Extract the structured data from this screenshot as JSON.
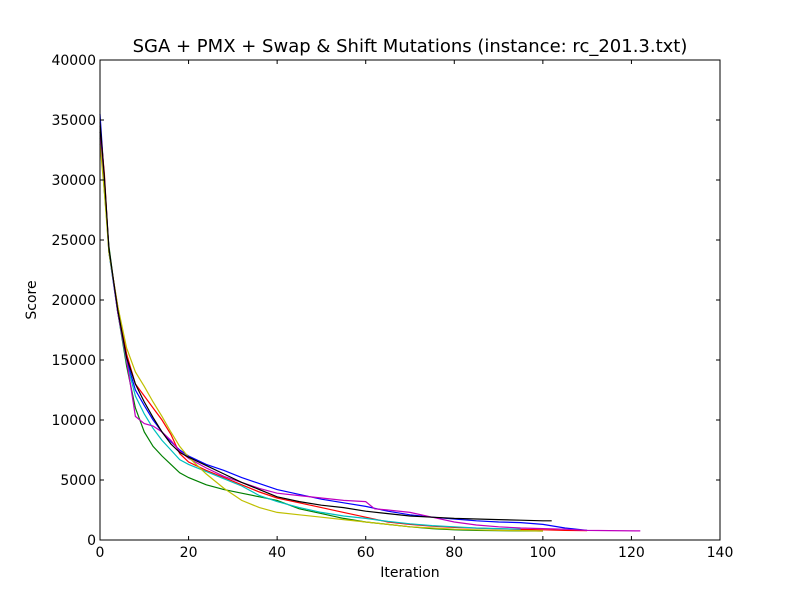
{
  "chart_data": {
    "type": "line",
    "title": "SGA + PMX + Swap & Shift Mutations (instance: rc_201.3.txt)",
    "xlabel": "Iteration",
    "ylabel": "Score",
    "xlim": [
      0,
      140
    ],
    "ylim": [
      0,
      40000
    ],
    "xticks": [
      0,
      20,
      40,
      60,
      80,
      100,
      120,
      140
    ],
    "yticks": [
      0,
      5000,
      10000,
      15000,
      20000,
      25000,
      30000,
      35000,
      40000
    ],
    "grid": false,
    "legend": "none",
    "series": [
      {
        "color": "#0000ff",
        "points": [
          [
            0,
            35500
          ],
          [
            1,
            30000
          ],
          [
            2,
            24000
          ],
          [
            4,
            19000
          ],
          [
            6,
            15000
          ],
          [
            8,
            12500
          ],
          [
            10,
            11200
          ],
          [
            12,
            10000
          ],
          [
            14,
            9000
          ],
          [
            16,
            8200
          ],
          [
            18,
            7500
          ],
          [
            20,
            7000
          ],
          [
            24,
            6300
          ],
          [
            28,
            5800
          ],
          [
            32,
            5200
          ],
          [
            36,
            4700
          ],
          [
            40,
            4200
          ],
          [
            45,
            3800
          ],
          [
            50,
            3400
          ],
          [
            55,
            3100
          ],
          [
            60,
            2800
          ],
          [
            65,
            2400
          ],
          [
            70,
            2100
          ],
          [
            75,
            1900
          ],
          [
            80,
            1750
          ],
          [
            85,
            1600
          ],
          [
            90,
            1500
          ],
          [
            95,
            1450
          ],
          [
            100,
            1300
          ],
          [
            105,
            1000
          ],
          [
            110,
            800
          ]
        ]
      },
      {
        "color": "#008000",
        "points": [
          [
            0,
            34000
          ],
          [
            1,
            29000
          ],
          [
            2,
            24500
          ],
          [
            4,
            19000
          ],
          [
            6,
            14500
          ],
          [
            8,
            11000
          ],
          [
            10,
            9000
          ],
          [
            12,
            7800
          ],
          [
            14,
            7000
          ],
          [
            16,
            6300
          ],
          [
            18,
            5600
          ],
          [
            20,
            5200
          ],
          [
            24,
            4600
          ],
          [
            28,
            4200
          ],
          [
            32,
            3900
          ],
          [
            36,
            3600
          ],
          [
            40,
            3300
          ],
          [
            45,
            2600
          ],
          [
            50,
            2200
          ],
          [
            55,
            1800
          ],
          [
            60,
            1500
          ],
          [
            65,
            1300
          ],
          [
            70,
            1100
          ],
          [
            75,
            950
          ],
          [
            80,
            850
          ],
          [
            85,
            800
          ],
          [
            90,
            780
          ],
          [
            95,
            760
          ],
          [
            100,
            750
          ]
        ]
      },
      {
        "color": "#ff0000",
        "points": [
          [
            0,
            34500
          ],
          [
            1,
            30500
          ],
          [
            2,
            24000
          ],
          [
            4,
            19500
          ],
          [
            6,
            15500
          ],
          [
            8,
            13000
          ],
          [
            10,
            12000
          ],
          [
            12,
            11000
          ],
          [
            14,
            10000
          ],
          [
            16,
            8800
          ],
          [
            18,
            7200
          ],
          [
            20,
            6500
          ],
          [
            24,
            5800
          ],
          [
            28,
            5200
          ],
          [
            32,
            4600
          ],
          [
            36,
            4000
          ],
          [
            40,
            3500
          ],
          [
            45,
            3100
          ],
          [
            50,
            2700
          ],
          [
            55,
            2300
          ],
          [
            60,
            1900
          ],
          [
            65,
            1500
          ],
          [
            70,
            1300
          ],
          [
            75,
            1150
          ],
          [
            80,
            1050
          ],
          [
            85,
            980
          ],
          [
            90,
            930
          ],
          [
            95,
            880
          ],
          [
            100,
            850
          ],
          [
            105,
            800
          ],
          [
            110,
            780
          ]
        ]
      },
      {
        "color": "#00bfbf",
        "points": [
          [
            0,
            33500
          ],
          [
            1,
            29500
          ],
          [
            2,
            24000
          ],
          [
            4,
            19000
          ],
          [
            6,
            14800
          ],
          [
            8,
            12000
          ],
          [
            10,
            10500
          ],
          [
            12,
            9300
          ],
          [
            14,
            8300
          ],
          [
            16,
            7500
          ],
          [
            18,
            6700
          ],
          [
            20,
            6300
          ],
          [
            24,
            5700
          ],
          [
            28,
            5100
          ],
          [
            32,
            4500
          ],
          [
            36,
            3700
          ],
          [
            40,
            3200
          ],
          [
            45,
            2700
          ],
          [
            50,
            2300
          ],
          [
            55,
            2000
          ],
          [
            60,
            1800
          ],
          [
            65,
            1550
          ],
          [
            70,
            1350
          ],
          [
            75,
            1200
          ],
          [
            80,
            1100
          ],
          [
            85,
            1000
          ],
          [
            90,
            950
          ],
          [
            95,
            900
          ]
        ]
      },
      {
        "color": "#bf00bf",
        "points": [
          [
            0,
            34000
          ],
          [
            1,
            30000
          ],
          [
            2,
            24200
          ],
          [
            4,
            19000
          ],
          [
            6,
            15000
          ],
          [
            8,
            10300
          ],
          [
            10,
            9700
          ],
          [
            12,
            9500
          ],
          [
            14,
            9000
          ],
          [
            16,
            8300
          ],
          [
            18,
            7400
          ],
          [
            20,
            6800
          ],
          [
            24,
            6000
          ],
          [
            28,
            5300
          ],
          [
            32,
            4800
          ],
          [
            36,
            4300
          ],
          [
            40,
            3900
          ],
          [
            45,
            3700
          ],
          [
            50,
            3500
          ],
          [
            55,
            3300
          ],
          [
            60,
            3200
          ],
          [
            62,
            2600
          ],
          [
            65,
            2500
          ],
          [
            70,
            2300
          ],
          [
            75,
            1900
          ],
          [
            80,
            1500
          ],
          [
            85,
            1250
          ],
          [
            90,
            1100
          ],
          [
            95,
            1000
          ],
          [
            100,
            950
          ],
          [
            105,
            900
          ],
          [
            110,
            800
          ],
          [
            115,
            780
          ],
          [
            122,
            760
          ]
        ]
      },
      {
        "color": "#bfbf00",
        "points": [
          [
            0,
            33000
          ],
          [
            1,
            29000
          ],
          [
            2,
            24000
          ],
          [
            4,
            19500
          ],
          [
            6,
            16000
          ],
          [
            8,
            14000
          ],
          [
            10,
            12800
          ],
          [
            12,
            11500
          ],
          [
            14,
            10300
          ],
          [
            16,
            9000
          ],
          [
            18,
            7800
          ],
          [
            20,
            6900
          ],
          [
            24,
            5500
          ],
          [
            28,
            4300
          ],
          [
            32,
            3300
          ],
          [
            36,
            2700
          ],
          [
            40,
            2300
          ],
          [
            45,
            2100
          ],
          [
            50,
            1900
          ],
          [
            55,
            1700
          ],
          [
            60,
            1500
          ],
          [
            65,
            1300
          ],
          [
            70,
            1100
          ],
          [
            75,
            1000
          ],
          [
            80,
            900
          ],
          [
            85,
            850
          ],
          [
            90,
            800
          ],
          [
            95,
            780
          ],
          [
            100,
            750
          ]
        ]
      },
      {
        "color": "#000000",
        "points": [
          [
            0,
            34800
          ],
          [
            1,
            30200
          ],
          [
            2,
            24300
          ],
          [
            4,
            19200
          ],
          [
            6,
            15200
          ],
          [
            8,
            13000
          ],
          [
            10,
            11500
          ],
          [
            12,
            10200
          ],
          [
            14,
            9000
          ],
          [
            16,
            8000
          ],
          [
            18,
            7300
          ],
          [
            20,
            6900
          ],
          [
            24,
            6200
          ],
          [
            28,
            5500
          ],
          [
            32,
            4800
          ],
          [
            36,
            4200
          ],
          [
            40,
            3600
          ],
          [
            45,
            3200
          ],
          [
            50,
            2900
          ],
          [
            55,
            2700
          ],
          [
            60,
            2400
          ],
          [
            65,
            2200
          ],
          [
            70,
            2000
          ],
          [
            75,
            1900
          ],
          [
            80,
            1800
          ],
          [
            85,
            1750
          ],
          [
            90,
            1700
          ],
          [
            95,
            1650
          ],
          [
            100,
            1600
          ],
          [
            102,
            1600
          ]
        ]
      }
    ]
  }
}
